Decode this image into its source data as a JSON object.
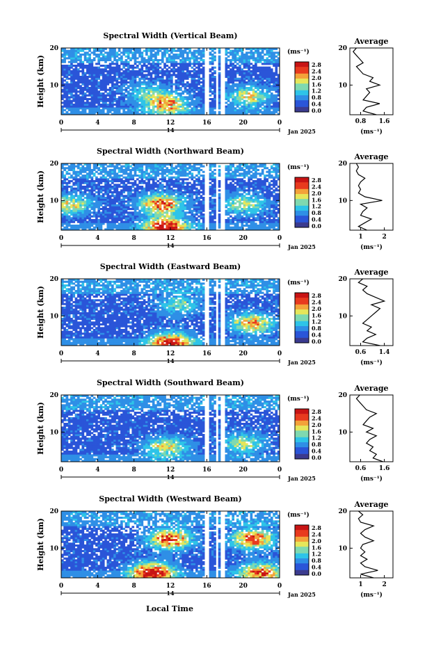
{
  "figure": {
    "xlabel": "Local Time",
    "date_label": "Jan 2025",
    "day_label": "14",
    "colorbar_unit": "(ms⁻¹)",
    "colorbar_ticks": [
      "2.8",
      "2.4",
      "2.0",
      "1.6",
      "1.2",
      "0.8",
      "0.4",
      "0.0"
    ],
    "colormap": [
      "#3b3b8f",
      "#2a55d8",
      "#2f8fe6",
      "#2ec4e8",
      "#7fd9b0",
      "#e6e65a",
      "#f3a23a",
      "#e83a1e",
      "#c81414"
    ],
    "average_title": "Average",
    "average_xlabel": "(ms⁻¹)"
  },
  "chart_data": [
    {
      "type": "heatmap",
      "title": "Spectral Width (Vertical Beam)",
      "ylabel": "Height (km)",
      "x_ticks": [
        "0",
        "4",
        "8",
        "12",
        "16",
        "20",
        "0"
      ],
      "y_ticks": [
        "20",
        "10"
      ],
      "xlim": [
        0,
        24
      ],
      "ylim": [
        2,
        20
      ],
      "clim": [
        0.0,
        3.0
      ],
      "gaps": [
        [
          15.8,
          16.3
        ],
        [
          16.9,
          17.3
        ],
        [
          17.6,
          18.0
        ]
      ],
      "hotspots": [
        [
          11.5,
          5,
          1.8
        ],
        [
          20.5,
          7,
          1.4
        ],
        [
          9.5,
          8,
          0.8
        ]
      ],
      "average": {
        "xticks": [
          "0.8",
          "1.6"
        ],
        "xlim": [
          0.5,
          1.8
        ],
        "yticks": [
          "20",
          "10"
        ],
        "profile": [
          [
            2,
            1.3
          ],
          [
            3,
            0.9
          ],
          [
            4,
            1.0
          ],
          [
            5,
            1.4
          ],
          [
            6,
            0.9
          ],
          [
            7,
            1.0
          ],
          [
            8,
            1.1
          ],
          [
            9,
            1.0
          ],
          [
            10,
            1.4
          ],
          [
            11,
            1.1
          ],
          [
            12,
            1.2
          ],
          [
            13,
            0.9
          ],
          [
            14,
            0.8
          ],
          [
            15,
            0.7
          ],
          [
            16,
            0.9
          ],
          [
            17,
            0.8
          ],
          [
            18,
            0.7
          ],
          [
            19,
            0.6
          ],
          [
            20,
            0.7
          ]
        ]
      }
    },
    {
      "type": "heatmap",
      "title": "Spectral Width (Northward Beam)",
      "ylabel": "Height (km)",
      "x_ticks": [
        "0",
        "4",
        "8",
        "12",
        "16",
        "20",
        "0"
      ],
      "y_ticks": [
        "20",
        "10"
      ],
      "xlim": [
        0,
        24
      ],
      "ylim": [
        2,
        20
      ],
      "clim": [
        0.0,
        3.0
      ],
      "gaps": [
        [
          15.8,
          16.3
        ],
        [
          16.9,
          17.3
        ],
        [
          17.6,
          18.0
        ]
      ],
      "hotspots": [
        [
          11,
          9,
          2.2
        ],
        [
          11.5,
          3,
          2.4
        ],
        [
          20,
          9,
          1.2
        ],
        [
          1,
          9,
          1.4
        ]
      ],
      "average": {
        "xticks": [
          "1",
          "2"
        ],
        "xlim": [
          0.5,
          2.5
        ],
        "yticks": [
          "20",
          "10"
        ],
        "profile": [
          [
            2,
            1.3
          ],
          [
            3,
            0.9
          ],
          [
            4,
            1.2
          ],
          [
            5,
            1.5
          ],
          [
            6,
            1.0
          ],
          [
            7,
            1.1
          ],
          [
            8,
            1.3
          ],
          [
            9,
            1.0
          ],
          [
            10,
            2.0
          ],
          [
            11,
            1.2
          ],
          [
            12,
            0.9
          ],
          [
            13,
            1.0
          ],
          [
            14,
            0.9
          ],
          [
            15,
            1.0
          ],
          [
            16,
            1.2
          ],
          [
            17,
            0.9
          ],
          [
            18,
            0.8
          ],
          [
            19,
            0.9
          ],
          [
            20,
            0.8
          ]
        ]
      }
    },
    {
      "type": "heatmap",
      "title": "Spectral Width (Eastward Beam)",
      "ylabel": "Height (km)",
      "x_ticks": [
        "0",
        "4",
        "8",
        "12",
        "16",
        "20",
        "0"
      ],
      "y_ticks": [
        "20",
        "10"
      ],
      "xlim": [
        0,
        24
      ],
      "ylim": [
        2,
        20
      ],
      "clim": [
        0.0,
        3.0
      ],
      "gaps": [
        [
          15.8,
          16.3
        ],
        [
          16.9,
          17.3
        ],
        [
          17.6,
          18.0
        ]
      ],
      "hotspots": [
        [
          12,
          3,
          2.2
        ],
        [
          21,
          8,
          1.8
        ],
        [
          13,
          13,
          1.0
        ]
      ],
      "average": {
        "xticks": [
          "0.6",
          "1.4"
        ],
        "xlim": [
          0.5,
          1.5
        ],
        "yticks": [
          "20",
          "10"
        ],
        "profile": [
          [
            2,
            1.2
          ],
          [
            3,
            0.8
          ],
          [
            4,
            0.9
          ],
          [
            5,
            1.1
          ],
          [
            6,
            0.9
          ],
          [
            7,
            1.0
          ],
          [
            8,
            0.8
          ],
          [
            9,
            0.9
          ],
          [
            10,
            1.0
          ],
          [
            11,
            1.1
          ],
          [
            12,
            1.2
          ],
          [
            13,
            1.0
          ],
          [
            14,
            1.3
          ],
          [
            15,
            1.1
          ],
          [
            16,
            0.9
          ],
          [
            17,
            0.8
          ],
          [
            18,
            0.9
          ],
          [
            19,
            0.7
          ],
          [
            20,
            0.8
          ]
        ]
      }
    },
    {
      "type": "heatmap",
      "title": "Spectral Width (Southward Beam)",
      "ylabel": "Height (km)",
      "x_ticks": [
        "0",
        "4",
        "8",
        "12",
        "16",
        "20",
        "0"
      ],
      "y_ticks": [
        "20",
        "10"
      ],
      "xlim": [
        0,
        24
      ],
      "ylim": [
        2,
        20
      ],
      "clim": [
        0.0,
        3.0
      ],
      "gaps": [
        [
          15.8,
          16.3
        ],
        [
          16.9,
          17.3
        ],
        [
          17.6,
          18.0
        ]
      ],
      "hotspots": [
        [
          11.5,
          6,
          1.4
        ],
        [
          20,
          7,
          1.2
        ]
      ],
      "average": {
        "xticks": [
          "0.6",
          "1.6"
        ],
        "xlim": [
          0.5,
          1.8
        ],
        "yticks": [
          "20",
          "10"
        ],
        "profile": [
          [
            2,
            1.5
          ],
          [
            3,
            1.2
          ],
          [
            4,
            1.3
          ],
          [
            5,
            1.1
          ],
          [
            6,
            1.2
          ],
          [
            7,
            1.0
          ],
          [
            8,
            1.1
          ],
          [
            9,
            1.3
          ],
          [
            10,
            1.0
          ],
          [
            11,
            1.2
          ],
          [
            12,
            0.9
          ],
          [
            13,
            1.0
          ],
          [
            14,
            1.1
          ],
          [
            15,
            1.3
          ],
          [
            16,
            1.0
          ],
          [
            17,
            0.9
          ],
          [
            18,
            0.8
          ],
          [
            19,
            0.7
          ],
          [
            20,
            0.8
          ]
        ]
      }
    },
    {
      "type": "heatmap",
      "title": "Spectral Width (Westward Beam)",
      "ylabel": "Height (km)",
      "x_ticks": [
        "0",
        "4",
        "8",
        "12",
        "16",
        "20",
        "0"
      ],
      "y_ticks": [
        "20",
        "10"
      ],
      "xlim": [
        0,
        24
      ],
      "ylim": [
        2,
        20
      ],
      "clim": [
        0.0,
        3.0
      ],
      "gaps": [
        [
          15.8,
          16.3
        ],
        [
          16.9,
          17.3
        ],
        [
          17.6,
          18.0
        ]
      ],
      "hotspots": [
        [
          12,
          12.5,
          2.4
        ],
        [
          10,
          3.5,
          2.6
        ],
        [
          21,
          12.5,
          2.2
        ],
        [
          22,
          3.5,
          2.0
        ]
      ],
      "average": {
        "xticks": [
          "1",
          "2"
        ],
        "xlim": [
          0.5,
          2.5
        ],
        "yticks": [
          "20",
          "10"
        ],
        "profile": [
          [
            2,
            1.6
          ],
          [
            3,
            1.0
          ],
          [
            4,
            1.8
          ],
          [
            5,
            1.2
          ],
          [
            6,
            1.0
          ],
          [
            7,
            1.3
          ],
          [
            8,
            1.0
          ],
          [
            9,
            1.2
          ],
          [
            10,
            1.0
          ],
          [
            11,
            1.1
          ],
          [
            12,
            1.6
          ],
          [
            13,
            1.2
          ],
          [
            14,
            1.0
          ],
          [
            15,
            1.2
          ],
          [
            16,
            1.6
          ],
          [
            17,
            1.0
          ],
          [
            18,
            0.9
          ],
          [
            19,
            1.1
          ],
          [
            20,
            0.9
          ]
        ]
      }
    }
  ]
}
